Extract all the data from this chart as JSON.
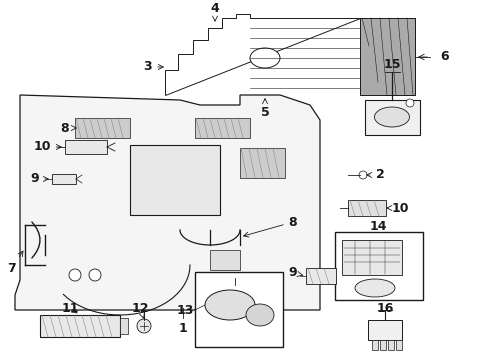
{
  "bg_color": "#ffffff",
  "fig_width": 4.89,
  "fig_height": 3.6,
  "dpi": 100,
  "dark": "#1a1a1a",
  "gray": "#888888",
  "lightgray": "#cccccc",
  "midgray": "#aaaaaa"
}
